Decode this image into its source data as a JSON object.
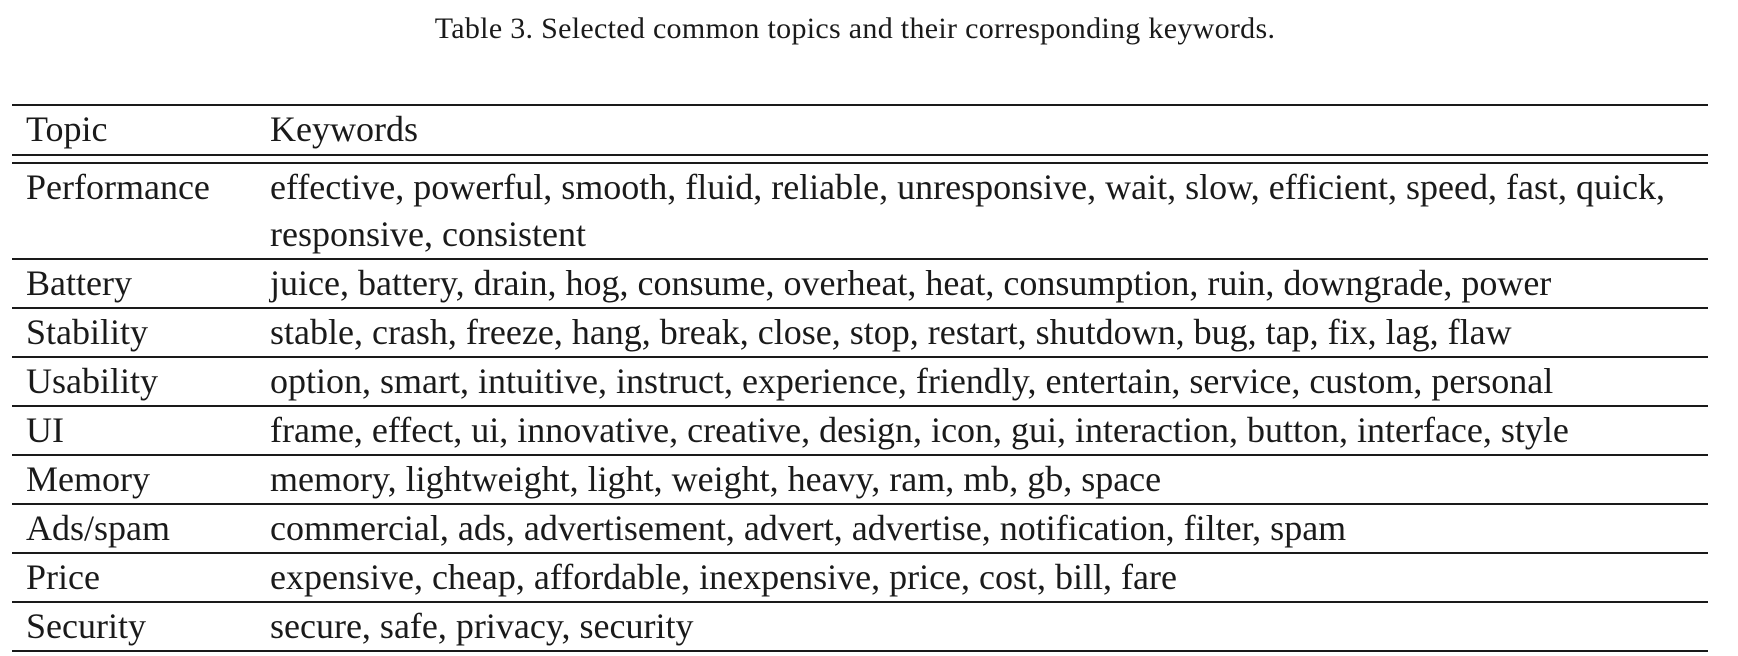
{
  "caption": "Table 3.  Selected common topics and their corresponding keywords.",
  "table": {
    "headers": [
      "Topic",
      "Keywords"
    ],
    "rows": [
      {
        "topic": "Performance",
        "keywords": "effective, powerful, smooth, fluid, reliable, unresponsive, wait, slow, efficient, speed, fast, quick, responsive, consistent"
      },
      {
        "topic": "Battery",
        "keywords": "juice, battery, drain, hog, consume, overheat, heat, consumption, ruin, downgrade, power"
      },
      {
        "topic": "Stability",
        "keywords": "stable, crash, freeze, hang, break, close, stop, restart, shutdown, bug, tap, fix, lag, flaw"
      },
      {
        "topic": "Usability",
        "keywords": "option, smart, intuitive, instruct, experience, friendly, entertain, service, custom, personal"
      },
      {
        "topic": "UI",
        "keywords": "frame, effect, ui, innovative, creative, design, icon, gui, interaction, button, interface, style"
      },
      {
        "topic": "Memory",
        "keywords": "memory, lightweight, light, weight, heavy, ram, mb, gb, space"
      },
      {
        "topic": "Ads/spam",
        "keywords": "commercial, ads, advertisement, advert, advertise, notification, filter, spam"
      },
      {
        "topic": "Price",
        "keywords": "expensive, cheap, affordable, inexpensive, price, cost, bill, fare"
      },
      {
        "topic": "Security",
        "keywords": "secure, safe, privacy, security"
      }
    ]
  }
}
